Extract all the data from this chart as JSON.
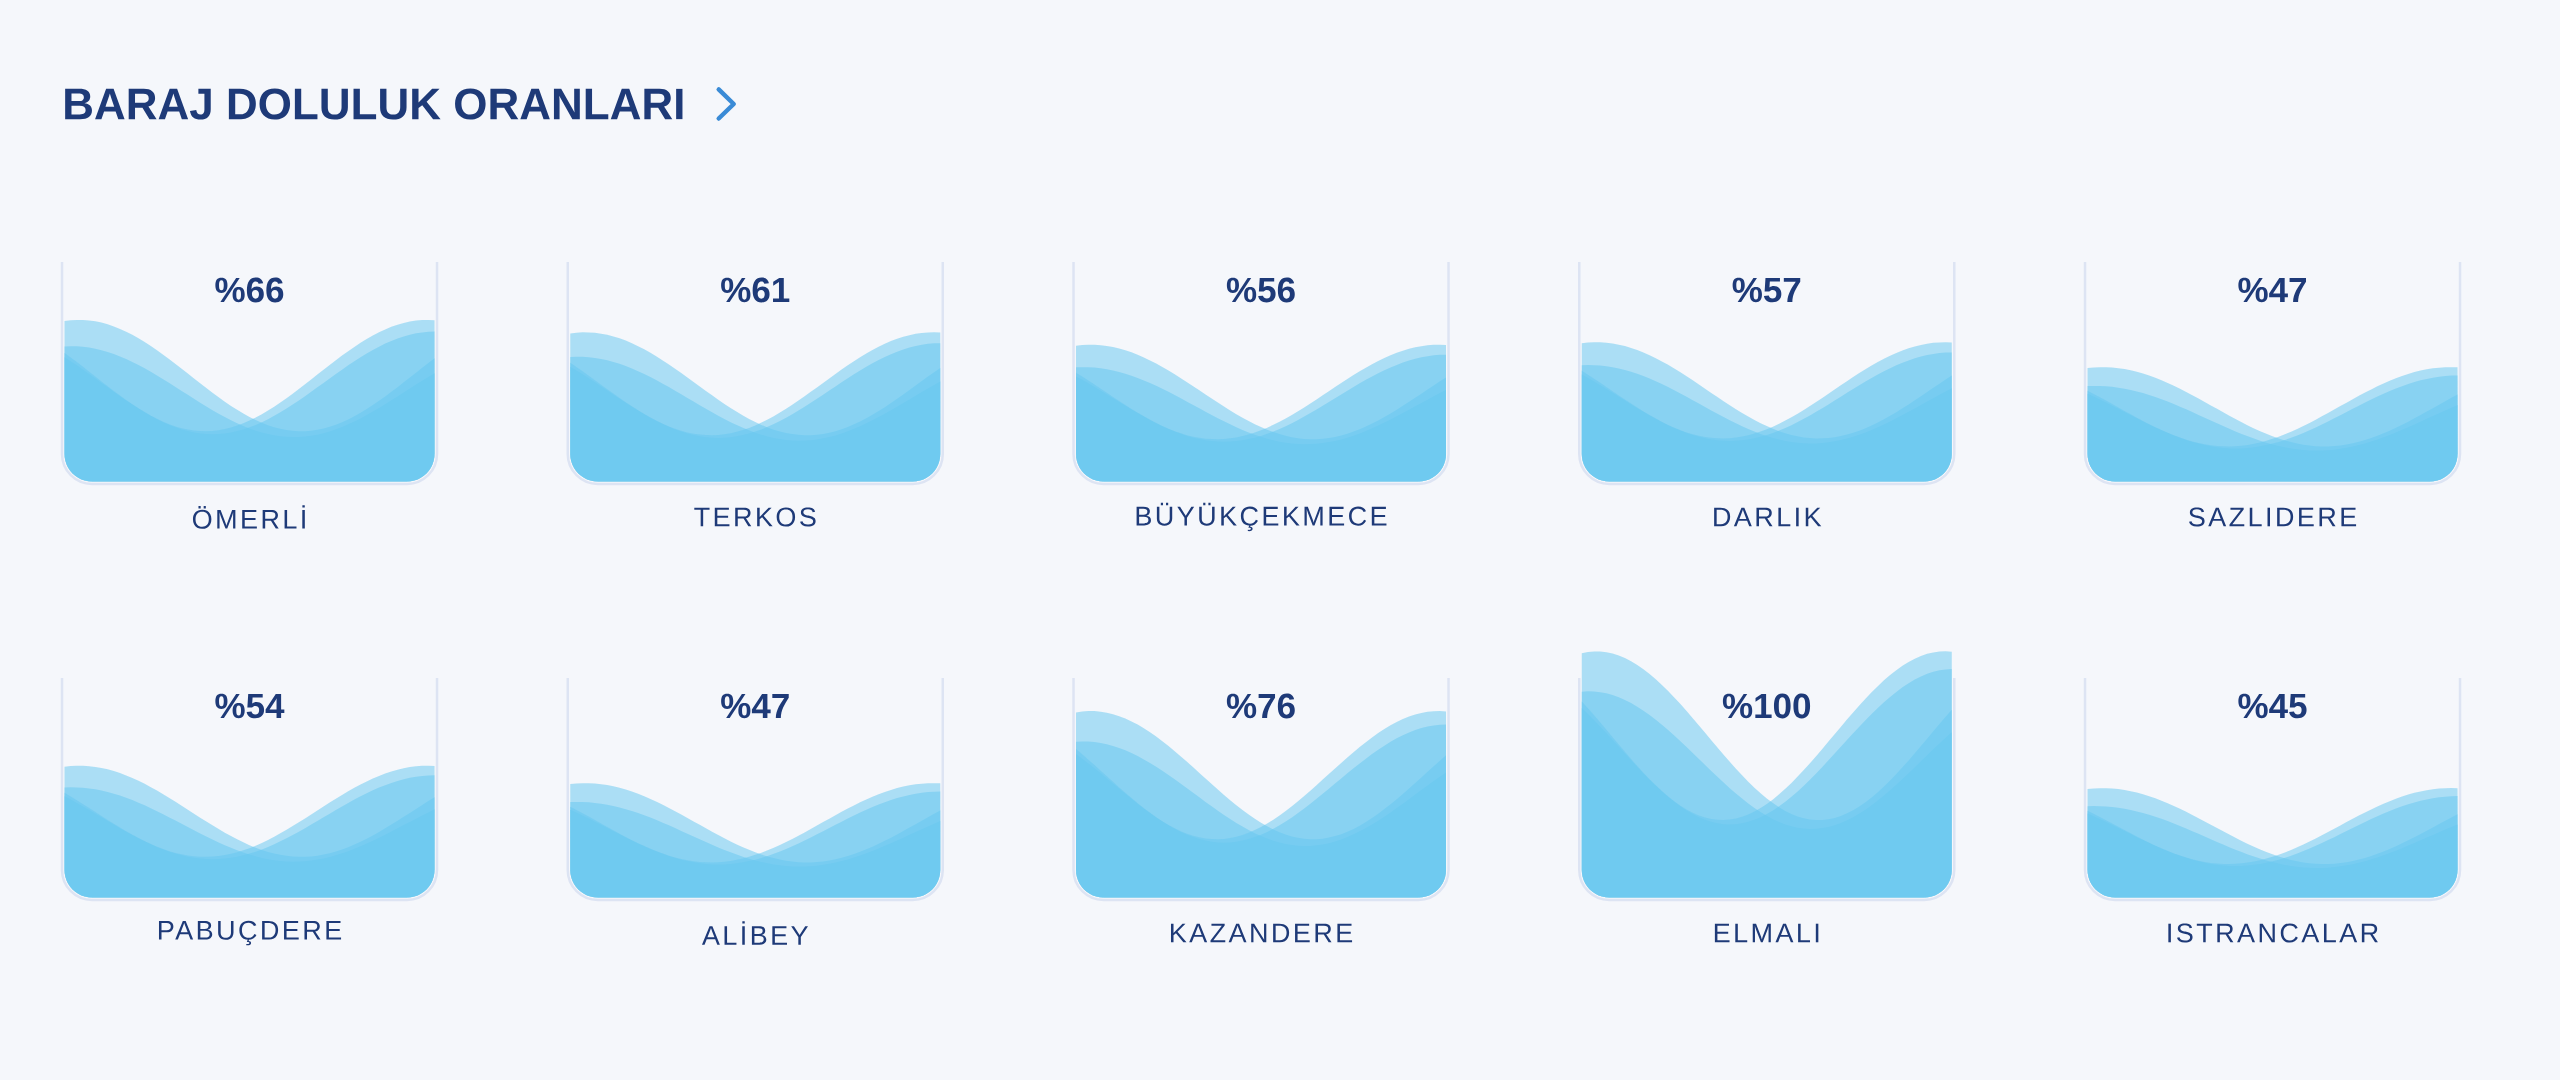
{
  "chart_data": [
    {
      "type": "other",
      "title": "BARAJ DOLULUK ORANLARI",
      "categories": [
        "ÖMERLİ",
        "TERKOS",
        "BÜYÜKÇEKMECE",
        "DARLIK",
        "SAZLIDERE"
      ],
      "values": [
        66,
        61,
        56,
        57,
        47
      ],
      "value_labels": [
        "%66",
        "%61",
        "%56",
        "%57",
        "%47"
      ],
      "color": "#67c8ef"
    },
    {
      "type": "other",
      "categories": [
        "PABUÇDERE",
        "ALİBEY",
        "KAZANDERE",
        "ELMALI",
        "ISTRANCALAR"
      ],
      "values": [
        54,
        47,
        76,
        100,
        45
      ],
      "value_labels": [
        "%54",
        "%47",
        "%76",
        "%100",
        "%45"
      ],
      "color": "#67c8ef"
    }
  ]
}
